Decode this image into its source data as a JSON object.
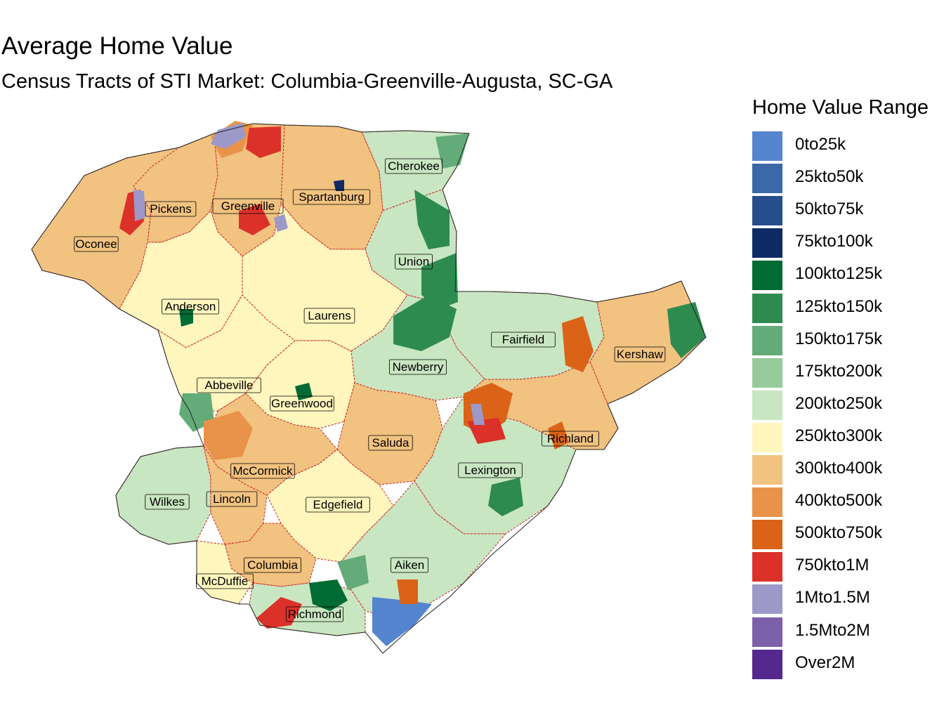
{
  "title": "Average Home Value",
  "subtitle": "Census Tracts of STI Market: Columbia-Greenville-Augusta, SC-GA",
  "legend": {
    "title": "Home Value Range",
    "items": [
      {
        "label": "0to25k",
        "color": "#5585CE"
      },
      {
        "label": "25kto50k",
        "color": "#3B68A8"
      },
      {
        "label": "50kto75k",
        "color": "#244E8C"
      },
      {
        "label": "75kto100k",
        "color": "#0E2B66"
      },
      {
        "label": "100kto125k",
        "color": "#006B32"
      },
      {
        "label": "125kto150k",
        "color": "#2E8B50"
      },
      {
        "label": "150kto175k",
        "color": "#63AB78"
      },
      {
        "label": "175kto200k",
        "color": "#98CB9B"
      },
      {
        "label": "200kto250k",
        "color": "#C8E6C1"
      },
      {
        "label": "250kto300k",
        "color": "#FFF6BE"
      },
      {
        "label": "300kto400k",
        "color": "#F1C280"
      },
      {
        "label": "400kto500k",
        "color": "#E89349"
      },
      {
        "label": "500kto750k",
        "color": "#DA6317"
      },
      {
        "label": "750kto1M",
        "color": "#DC3129"
      },
      {
        "label": "1Mto1.5M",
        "color": "#9C99C9"
      },
      {
        "label": "1.5Mto2M",
        "color": "#7C60AA"
      },
      {
        "label": "Over2M",
        "color": "#54288F"
      }
    ]
  },
  "counties": [
    {
      "name": "Cherokee",
      "category": "200kto250k"
    },
    {
      "name": "Pickens",
      "category": "300kto400k"
    },
    {
      "name": "Greenville",
      "category": "300kto400k"
    },
    {
      "name": "Spartanburg",
      "category": "300kto400k"
    },
    {
      "name": "Oconee",
      "category": "300kto400k"
    },
    {
      "name": "Union",
      "category": "200kto250k"
    },
    {
      "name": "Anderson",
      "category": "250kto300k"
    },
    {
      "name": "Laurens",
      "category": "250kto300k"
    },
    {
      "name": "Fairfield",
      "category": "200kto250k"
    },
    {
      "name": "Kershaw",
      "category": "300kto400k"
    },
    {
      "name": "Newberry",
      "category": "200kto250k"
    },
    {
      "name": "Abbeville",
      "category": "250kto300k"
    },
    {
      "name": "Greenwood",
      "category": "250kto300k"
    },
    {
      "name": "Saluda",
      "category": "300kto400k"
    },
    {
      "name": "Richland",
      "category": "300kto400k"
    },
    {
      "name": "McCormick",
      "category": "300kto400k"
    },
    {
      "name": "Lexington",
      "category": "200kto250k"
    },
    {
      "name": "Wilkes",
      "category": "200kto250k"
    },
    {
      "name": "Lincoln",
      "category": "300kto400k"
    },
    {
      "name": "Edgefield",
      "category": "250kto300k"
    },
    {
      "name": "Columbia",
      "category": "300kto400k"
    },
    {
      "name": "Aiken",
      "category": "200kto250k"
    },
    {
      "name": "McDuffie",
      "category": "250kto300k"
    },
    {
      "name": "Richmond",
      "category": "200kto250k"
    }
  ]
}
